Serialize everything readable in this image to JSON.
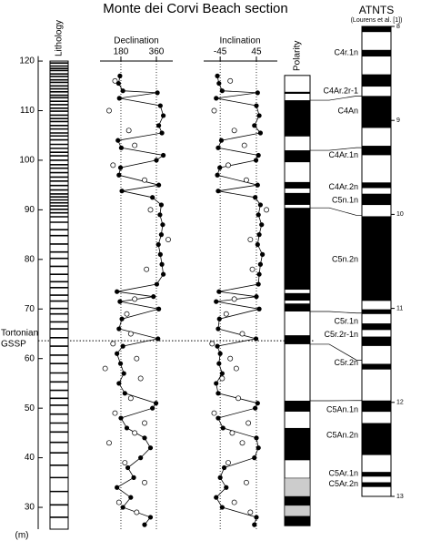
{
  "chart_data": {
    "type": "stratigraphic-section",
    "title": "Monte dei Corvi Beach section",
    "depth_axis": {
      "label": "(m)",
      "ylim": [
        25.6,
        121
      ],
      "yticks": [
        30,
        40,
        50,
        60,
        70,
        80,
        90,
        100,
        110,
        120
      ]
    },
    "gssp": {
      "label": [
        "Tortonian",
        "GSSP"
      ],
      "depth": 63.6
    },
    "lithology": {
      "label": "Lithology",
      "range": [
        120,
        25.6
      ],
      "beds": [
        119.6,
        119.0,
        118.5,
        118.1,
        117.4,
        116.9,
        116.2,
        115.7,
        115.0,
        114.4,
        113.8,
        113.1,
        112.6,
        111.9,
        111.2,
        110.5,
        109.9,
        109.1,
        108.4,
        107.8,
        107.0,
        106.3,
        105.5,
        104.9,
        104.1,
        103.2,
        102.4,
        101.6,
        100.9,
        100.0,
        99.1,
        98.4,
        97.5,
        96.6,
        95.8,
        94.9,
        94.0,
        93.2,
        92.6,
        92.0,
        91.4,
        90.8,
        90.1,
        89.4,
        88.6,
        87.5,
        86.0,
        84.8,
        83.1,
        81.5,
        80.2,
        78.6,
        77.0,
        75.5,
        74.3,
        72.8,
        71.6,
        70.1,
        69.0,
        67.4,
        66.0,
        64.2,
        62.5,
        60.7,
        59.0,
        57.1,
        55.3,
        53.6,
        52.0,
        50.6,
        48.8,
        47.0,
        45.2,
        43.1,
        41.0,
        38.5,
        36.0,
        33.2,
        30.5,
        28.0
      ]
    },
    "declination": {
      "label": "Declination",
      "xlim": [
        74,
        443
      ],
      "xticks": [
        180,
        360
      ]
    },
    "inclination": {
      "label": "Inclination",
      "xlim": [
        -86,
        97
      ],
      "xticks": [
        -45,
        45
      ]
    },
    "filled": {
      "depth": [
        117,
        115.5,
        114,
        113.6,
        112.5,
        111,
        109,
        107,
        105.5,
        104,
        102.5,
        101,
        100,
        98.5,
        97,
        95,
        93.8,
        92.5,
        91,
        89,
        87,
        85,
        83,
        81,
        79,
        77,
        75,
        73.5,
        72.5,
        71.5,
        70,
        68,
        66,
        64,
        62.5,
        61,
        59,
        57,
        55,
        53,
        51,
        50,
        48,
        46,
        44,
        42,
        40,
        38,
        36,
        34,
        32,
        30,
        28,
        26.5
      ],
      "declination": [
        175,
        168,
        190,
        365,
        172,
        380,
        395,
        372,
        388,
        165,
        182,
        395,
        360,
        178,
        170,
        372,
        185,
        340,
        385,
        378,
        392,
        385,
        370,
        380,
        388,
        395,
        362,
        160,
        345,
        175,
        372,
        185,
        170,
        368,
        190,
        160,
        178,
        195,
        170,
        200,
        358,
        340,
        180,
        210,
        300,
        330,
        280,
        215,
        245,
        160,
        230,
        190,
        330,
        300
      ],
      "inclination": [
        -52,
        -48,
        -40,
        48,
        -55,
        45,
        52,
        40,
        55,
        -42,
        -50,
        50,
        44,
        -46,
        -52,
        48,
        -50,
        42,
        55,
        50,
        58,
        52,
        48,
        60,
        55,
        52,
        50,
        -48,
        45,
        -55,
        52,
        -47,
        -50,
        44,
        -52,
        -45,
        -48,
        -40,
        -55,
        -50,
        48,
        42,
        -50,
        -38,
        45,
        50,
        40,
        -35,
        -45,
        -30,
        -55,
        -40,
        45,
        40
      ]
    },
    "open": {
      "depth": [
        116,
        110,
        106,
        103,
        99,
        96,
        90,
        84,
        78,
        72,
        69,
        65,
        63,
        60,
        58,
        56,
        52,
        49,
        47,
        45,
        43,
        39,
        35,
        31,
        29
      ],
      "declination": [
        150,
        120,
        220,
        250,
        140,
        300,
        330,
        420,
        310,
        250,
        210,
        230,
        140,
        260,
        100,
        280,
        230,
        150,
        300,
        250,
        120,
        200,
        300,
        170,
        260
      ],
      "inclination": [
        -20,
        -60,
        -10,
        15,
        -25,
        20,
        70,
        30,
        35,
        -10,
        -30,
        10,
        -65,
        -20,
        -5,
        -40,
        0,
        -60,
        25,
        -15,
        10,
        -25,
        20,
        -10,
        30
      ]
    },
    "polarity": {
      "label": "Polarity",
      "range": [
        117.1,
        26.3
      ],
      "normal": [
        [
          113.8,
          113.4
        ],
        [
          112.1,
          104.8
        ],
        [
          102.0,
          99.6
        ],
        [
          95.6,
          94.3
        ],
        [
          93.4,
          91.0
        ],
        [
          90.4,
          73.9
        ],
        [
          73.2,
          71.7
        ],
        [
          71.1,
          69.5
        ],
        [
          64.7,
          62.9
        ],
        [
          51.5,
          49.3
        ],
        [
          46.0,
          39.5
        ],
        [
          32.2,
          30.4
        ],
        [
          28.2,
          26.3
        ]
      ],
      "uncertain": [
        [
          35.9,
          32.2
        ],
        [
          30.4,
          28.2
        ]
      ]
    },
    "atnts": {
      "title": "ATNTS",
      "subtitle": "(Lourens et al. [1])",
      "ylim": [
        8,
        13
      ],
      "yticks": [
        8,
        9,
        10,
        11,
        12,
        13
      ],
      "normal": [
        [
          8.0,
          8.06
        ],
        [
          8.25,
          8.32
        ],
        [
          8.51,
          8.64
        ],
        [
          8.74,
          9.08
        ],
        [
          9.27,
          9.37
        ],
        [
          9.66,
          9.72
        ],
        [
          9.78,
          9.9
        ],
        [
          10.02,
          10.92
        ],
        [
          11.01,
          11.06
        ],
        [
          11.16,
          11.23
        ],
        [
          11.3,
          11.4
        ],
        [
          11.59,
          11.65
        ],
        [
          11.98,
          12.1
        ],
        [
          12.22,
          12.56
        ],
        [
          12.74,
          12.79
        ],
        [
          12.85,
          12.9
        ]
      ],
      "chrons": [
        {
          "label": "C4r.1n",
          "age": 8.28
        },
        {
          "label": "C4Ar.2r-1",
          "age": 8.69
        },
        {
          "label": "C4An",
          "age": 8.9
        },
        {
          "label": "C4Ar.1n",
          "age": 9.37
        },
        {
          "label": "C4Ar.2n",
          "age": 9.71
        },
        {
          "label": "C5n.1n",
          "age": 9.85
        },
        {
          "label": "C5n.2n",
          "age": 10.48
        },
        {
          "label": "C5r.1n",
          "age": 11.14
        },
        {
          "label": "C5r.2r-1n",
          "age": 11.28
        },
        {
          "label": "C5r.2n",
          "age": 11.58
        },
        {
          "label": "C5An.1n",
          "age": 12.08
        },
        {
          "label": "C5An.2n",
          "age": 12.35
        },
        {
          "label": "C5Ar.1n",
          "age": 12.76
        },
        {
          "label": "C5Ar.2n",
          "age": 12.87
        }
      ],
      "ties": [
        {
          "depth": 112.1,
          "age": 8.74
        },
        {
          "depth": 102.0,
          "age": 9.29
        },
        {
          "depth": 90.4,
          "age": 10.01
        },
        {
          "depth": 69.5,
          "age": 11.05
        },
        {
          "depth": 62.9,
          "age": 11.55
        },
        {
          "depth": 51.5,
          "age": 11.98
        }
      ]
    }
  }
}
